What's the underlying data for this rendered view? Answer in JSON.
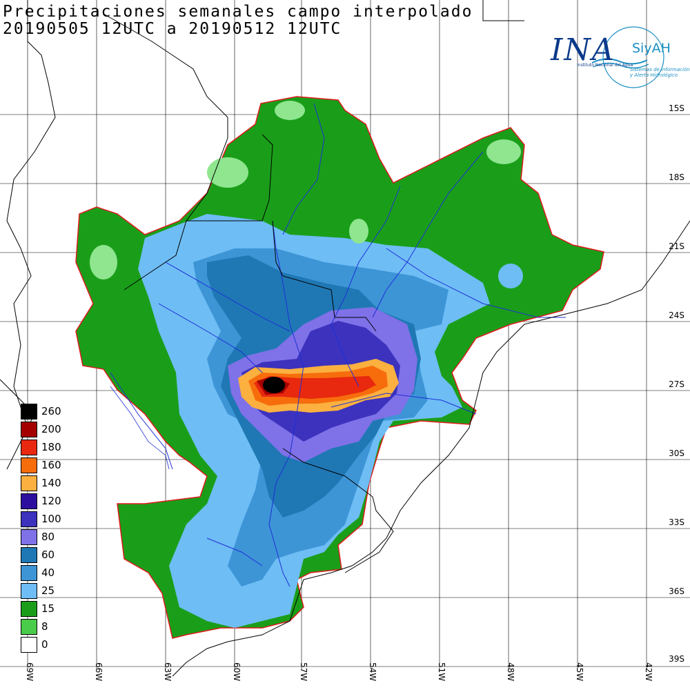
{
  "title": {
    "line1": "Precipitaciones semanales campo interpolado",
    "line2": "20190505 12UTC a 20190512 12UTC"
  },
  "logo": {
    "ina": "INA",
    "siyah": "SiyAH",
    "sub1": "Instituto Nacional del Agua",
    "sub2": "Sistemas de información y Alerta Hidrológico"
  },
  "lat_labels": [
    "15S",
    "18S",
    "21S",
    "24S",
    "27S",
    "30S",
    "33S",
    "36S",
    "39S"
  ],
  "lon_labels": [
    "69W",
    "66W",
    "63W",
    "60W",
    "57W",
    "54W",
    "51W",
    "48W",
    "45W",
    "42W"
  ],
  "legend": [
    {
      "label": "260",
      "color": "#000000"
    },
    {
      "label": "200",
      "color": "#a50000"
    },
    {
      "label": "180",
      "color": "#e8280f"
    },
    {
      "label": "160",
      "color": "#f76d0c"
    },
    {
      "label": "140",
      "color": "#fbb040"
    },
    {
      "label": "120",
      "color": "#2d0fa0"
    },
    {
      "label": "100",
      "color": "#3c32bd"
    },
    {
      "label": "80",
      "color": "#7f71e8"
    },
    {
      "label": "60",
      "color": "#1f78b4"
    },
    {
      "label": "40",
      "color": "#3d95d6"
    },
    {
      "label": "25",
      "color": "#6ebdf5"
    },
    {
      "label": "15",
      "color": "#1a9e1a"
    },
    {
      "label": "8",
      "color": "#49cc49"
    },
    {
      "label": "0",
      "color": "#ffffff"
    }
  ],
  "colors": {
    "green_light": "#8fe68f",
    "basin_outline": "#e0191c",
    "rivers": "#1e2fd6",
    "borders": "#000000"
  }
}
